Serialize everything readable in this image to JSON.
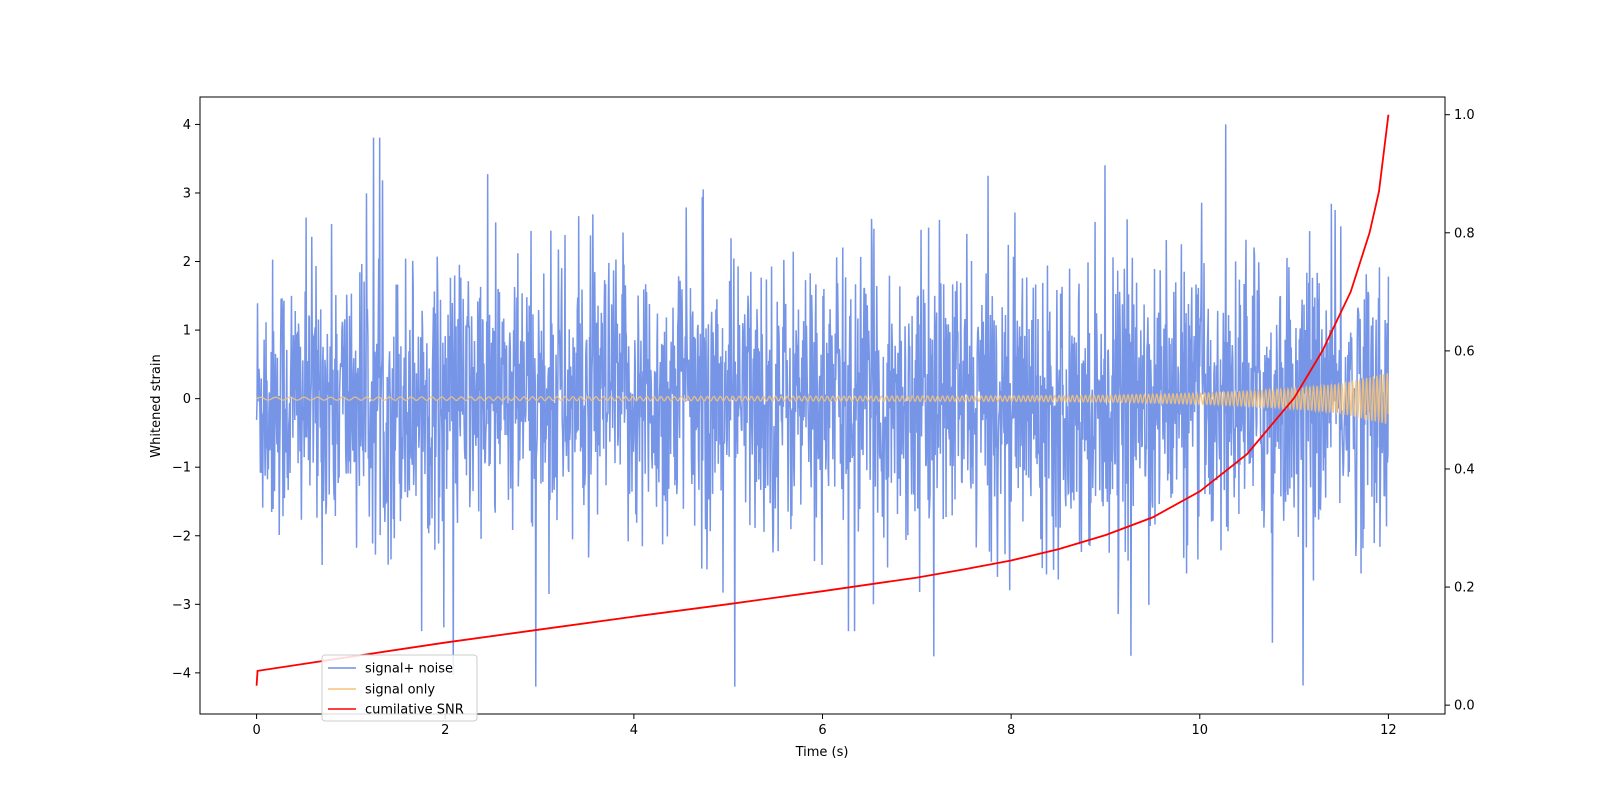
{
  "chart_data": {
    "type": "line",
    "title": "",
    "xlabel": "Time (s)",
    "ylabel": "Whitened strain",
    "y2label": "",
    "xlim": [
      -0.6,
      12.6
    ],
    "ylim": [
      -4.6,
      4.4
    ],
    "y2lim": [
      -0.015,
      1.03
    ],
    "xticks": [
      0,
      2,
      4,
      6,
      8,
      10,
      12
    ],
    "yticks": [
      -4,
      -3,
      -2,
      -1,
      0,
      1,
      2,
      3,
      4
    ],
    "y2ticks": [
      0.0,
      0.2,
      0.4,
      0.6,
      0.8,
      1.0
    ],
    "xtick_labels": [
      "0",
      "2",
      "4",
      "6",
      "8",
      "10",
      "12"
    ],
    "ytick_labels": [
      "−4",
      "−3",
      "−2",
      "−1",
      "0",
      "1",
      "2",
      "3",
      "4"
    ],
    "y2tick_labels": [
      "0.0",
      "0.2",
      "0.4",
      "0.6",
      "0.8",
      "1.0"
    ],
    "grid": false,
    "legend_position": "lower-left",
    "series": [
      {
        "name": "signal+ noise",
        "axis": "left",
        "color": "#6f8fe6",
        "description_values": "noise envelope approx ±1.8, spikes to ±4",
        "duration_s": 12,
        "envelope": {
          "typical_max": 1.8,
          "typical_min": -1.8,
          "peak_max": 4.0,
          "peak_min": -4.2
        }
      },
      {
        "name": "signal only",
        "axis": "left",
        "color": "#f4c27a",
        "x": [
          0,
          4,
          8,
          9,
          10,
          10.5,
          11,
          11.5,
          12
        ],
        "amplitude": [
          0.02,
          0.03,
          0.04,
          0.05,
          0.08,
          0.11,
          0.15,
          0.22,
          0.38
        ]
      },
      {
        "name": "cumilative SNR",
        "axis": "right",
        "color": "#ff0000",
        "x": [
          0,
          0.01,
          1,
          2,
          3,
          4,
          5,
          6,
          7,
          7.5,
          8,
          8.5,
          9,
          9.5,
          10,
          10.5,
          11,
          11.3,
          11.6,
          11.8,
          11.9,
          12
        ],
        "y": [
          0.033,
          0.058,
          0.082,
          0.106,
          0.128,
          0.15,
          0.171,
          0.193,
          0.216,
          0.23,
          0.245,
          0.264,
          0.288,
          0.318,
          0.362,
          0.425,
          0.52,
          0.6,
          0.7,
          0.8,
          0.87,
          1.0
        ]
      }
    ]
  }
}
